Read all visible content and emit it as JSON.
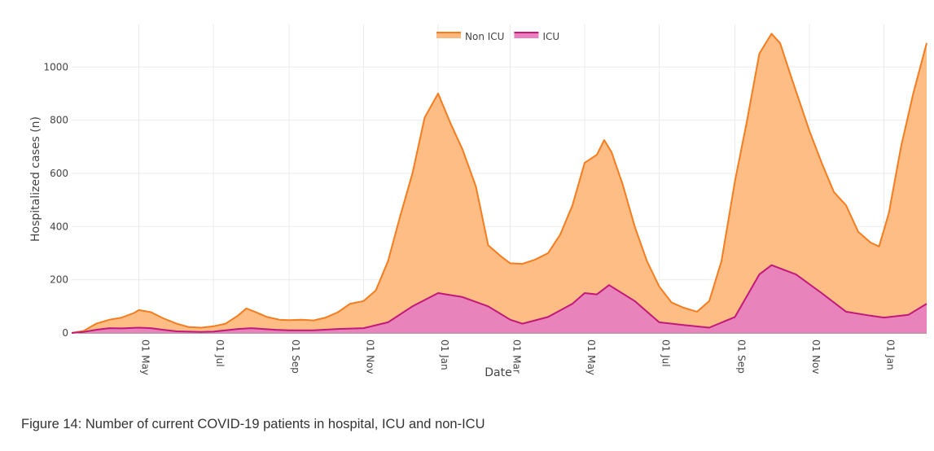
{
  "caption": "Figure 14: Number of current COVID-19 patients in hospital, ICU and non-ICU",
  "chart_data": {
    "type": "area",
    "stacked": true,
    "xlabel": "Date",
    "ylabel": "Hospitalized cases (n)",
    "x_range": [
      "2020-03-07",
      "2022-02-05"
    ],
    "y_range": [
      0,
      1160
    ],
    "y_ticks": [
      0,
      200,
      400,
      600,
      800,
      1000
    ],
    "x_ticks": [
      {
        "date": "2020-05-01",
        "label": "01 May"
      },
      {
        "date": "2020-07-01",
        "label": "01 Jul"
      },
      {
        "date": "2020-09-01",
        "label": "01 Sep"
      },
      {
        "date": "2020-11-01",
        "label": "01 Nov"
      },
      {
        "date": "2021-01-01",
        "label": "01 Jan"
      },
      {
        "date": "2021-03-01",
        "label": "01 Mar"
      },
      {
        "date": "2021-05-01",
        "label": "01 May"
      },
      {
        "date": "2021-07-01",
        "label": "01 Jul"
      },
      {
        "date": "2021-09-01",
        "label": "01 Sep"
      },
      {
        "date": "2021-11-01",
        "label": "01 Nov"
      },
      {
        "date": "2022-01-01",
        "label": "01 Jan"
      }
    ],
    "grid": true,
    "legend_position": "top-center",
    "colors": {
      "non_icu_line": "#f57c1f",
      "non_icu_fill": "#fdb97d",
      "icu_line": "#c2187a",
      "icu_fill": "#e87fbe"
    },
    "series": [
      {
        "name": "Non ICU",
        "note": "values are the stacked total (ICU + non-ICU)",
        "points": [
          [
            "2020-03-07",
            0
          ],
          [
            "2020-03-17",
            8
          ],
          [
            "2020-03-27",
            35
          ],
          [
            "2020-04-07",
            50
          ],
          [
            "2020-04-17",
            58
          ],
          [
            "2020-04-27",
            75
          ],
          [
            "2020-05-01",
            86
          ],
          [
            "2020-05-11",
            78
          ],
          [
            "2020-05-21",
            55
          ],
          [
            "2020-06-01",
            35
          ],
          [
            "2020-06-11",
            22
          ],
          [
            "2020-06-21",
            20
          ],
          [
            "2020-07-01",
            25
          ],
          [
            "2020-07-11",
            35
          ],
          [
            "2020-07-21",
            65
          ],
          [
            "2020-07-28",
            92
          ],
          [
            "2020-08-04",
            80
          ],
          [
            "2020-08-14",
            60
          ],
          [
            "2020-08-24",
            50
          ],
          [
            "2020-09-01",
            48
          ],
          [
            "2020-09-11",
            50
          ],
          [
            "2020-09-21",
            47
          ],
          [
            "2020-10-01",
            58
          ],
          [
            "2020-10-11",
            78
          ],
          [
            "2020-10-21",
            110
          ],
          [
            "2020-11-01",
            120
          ],
          [
            "2020-11-11",
            160
          ],
          [
            "2020-11-21",
            270
          ],
          [
            "2020-12-01",
            440
          ],
          [
            "2020-12-11",
            600
          ],
          [
            "2020-12-21",
            810
          ],
          [
            "2021-01-01",
            900
          ],
          [
            "2021-01-11",
            790
          ],
          [
            "2021-01-21",
            690
          ],
          [
            "2021-02-01",
            550
          ],
          [
            "2021-02-11",
            330
          ],
          [
            "2021-02-21",
            290
          ],
          [
            "2021-03-01",
            262
          ],
          [
            "2021-03-11",
            260
          ],
          [
            "2021-03-21",
            275
          ],
          [
            "2021-04-01",
            300
          ],
          [
            "2021-04-11",
            370
          ],
          [
            "2021-04-21",
            480
          ],
          [
            "2021-05-01",
            640
          ],
          [
            "2021-05-11",
            670
          ],
          [
            "2021-05-17",
            725
          ],
          [
            "2021-05-23",
            680
          ],
          [
            "2021-06-01",
            560
          ],
          [
            "2021-06-11",
            400
          ],
          [
            "2021-06-21",
            270
          ],
          [
            "2021-07-01",
            175
          ],
          [
            "2021-07-11",
            115
          ],
          [
            "2021-07-21",
            95
          ],
          [
            "2021-08-01",
            80
          ],
          [
            "2021-08-11",
            120
          ],
          [
            "2021-08-21",
            270
          ],
          [
            "2021-09-01",
            570
          ],
          [
            "2021-09-11",
            800
          ],
          [
            "2021-09-21",
            1050
          ],
          [
            "2021-10-01",
            1125
          ],
          [
            "2021-10-08",
            1090
          ],
          [
            "2021-10-18",
            950
          ],
          [
            "2021-11-01",
            760
          ],
          [
            "2021-11-11",
            640
          ],
          [
            "2021-11-21",
            530
          ],
          [
            "2021-12-01",
            480
          ],
          [
            "2021-12-11",
            380
          ],
          [
            "2021-12-21",
            340
          ],
          [
            "2021-12-28",
            325
          ],
          [
            "2022-01-05",
            450
          ],
          [
            "2022-01-15",
            700
          ],
          [
            "2022-01-25",
            900
          ],
          [
            "2022-02-05",
            1090
          ]
        ]
      },
      {
        "name": "ICU",
        "points": [
          [
            "2020-03-07",
            0
          ],
          [
            "2020-03-17",
            4
          ],
          [
            "2020-03-27",
            12
          ],
          [
            "2020-04-07",
            18
          ],
          [
            "2020-04-17",
            17
          ],
          [
            "2020-05-01",
            20
          ],
          [
            "2020-05-11",
            18
          ],
          [
            "2020-05-21",
            12
          ],
          [
            "2020-06-01",
            6
          ],
          [
            "2020-06-21",
            4
          ],
          [
            "2020-07-01",
            5
          ],
          [
            "2020-07-21",
            15
          ],
          [
            "2020-08-01",
            18
          ],
          [
            "2020-08-21",
            12
          ],
          [
            "2020-09-01",
            10
          ],
          [
            "2020-09-21",
            10
          ],
          [
            "2020-10-11",
            15
          ],
          [
            "2020-11-01",
            18
          ],
          [
            "2020-11-21",
            40
          ],
          [
            "2020-12-11",
            100
          ],
          [
            "2021-01-01",
            150
          ],
          [
            "2021-01-21",
            135
          ],
          [
            "2021-02-11",
            100
          ],
          [
            "2021-03-01",
            50
          ],
          [
            "2021-03-11",
            35
          ],
          [
            "2021-04-01",
            60
          ],
          [
            "2021-04-21",
            110
          ],
          [
            "2021-05-01",
            150
          ],
          [
            "2021-05-11",
            145
          ],
          [
            "2021-05-21",
            180
          ],
          [
            "2021-06-11",
            120
          ],
          [
            "2021-07-01",
            40
          ],
          [
            "2021-07-21",
            30
          ],
          [
            "2021-08-11",
            20
          ],
          [
            "2021-09-01",
            60
          ],
          [
            "2021-09-21",
            220
          ],
          [
            "2021-10-01",
            255
          ],
          [
            "2021-10-21",
            220
          ],
          [
            "2021-11-11",
            150
          ],
          [
            "2021-12-01",
            80
          ],
          [
            "2021-12-21",
            65
          ],
          [
            "2022-01-01",
            58
          ],
          [
            "2022-01-21",
            68
          ],
          [
            "2022-02-05",
            110
          ]
        ]
      }
    ]
  }
}
